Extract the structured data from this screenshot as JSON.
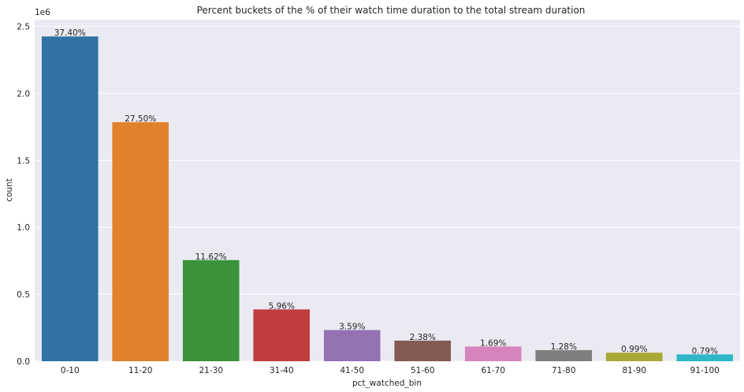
{
  "chart_data": {
    "type": "bar",
    "title": "Percent buckets of the % of their watch time duration to the total stream duration",
    "xlabel": "pct_watched_bin",
    "ylabel": "count",
    "y_offset_text": "1e6",
    "y_scale": 1000000,
    "ylim": [
      0,
      2550000
    ],
    "yticks": [
      0,
      500000,
      1000000,
      1500000,
      2000000,
      2500000
    ],
    "ytick_labels": [
      "0.0",
      "0.5",
      "1.0",
      "1.5",
      "2.0",
      "2.5"
    ],
    "grid": true,
    "categories": [
      "0-10",
      "11-20",
      "21-30",
      "31-40",
      "41-50",
      "51-60",
      "61-70",
      "71-80",
      "81-90",
      "91-100"
    ],
    "values": [
      2425000,
      1785000,
      755000,
      387000,
      233000,
      154000,
      110000,
      83000,
      64000,
      51000
    ],
    "bar_labels": [
      "37.40%",
      "27.50%",
      "11.62%",
      "5.96%",
      "3.59%",
      "2.38%",
      "1.69%",
      "1.28%",
      "0.99%",
      "0.79%"
    ],
    "colors": [
      "#2f72a3",
      "#e1812c",
      "#3a923a",
      "#c03d3e",
      "#9372b2",
      "#845b53",
      "#d684bd",
      "#7f7f7f",
      "#a9aa35",
      "#2db7c7"
    ],
    "background_color": "#eaeaf2",
    "grid_color": "#ffffff"
  }
}
